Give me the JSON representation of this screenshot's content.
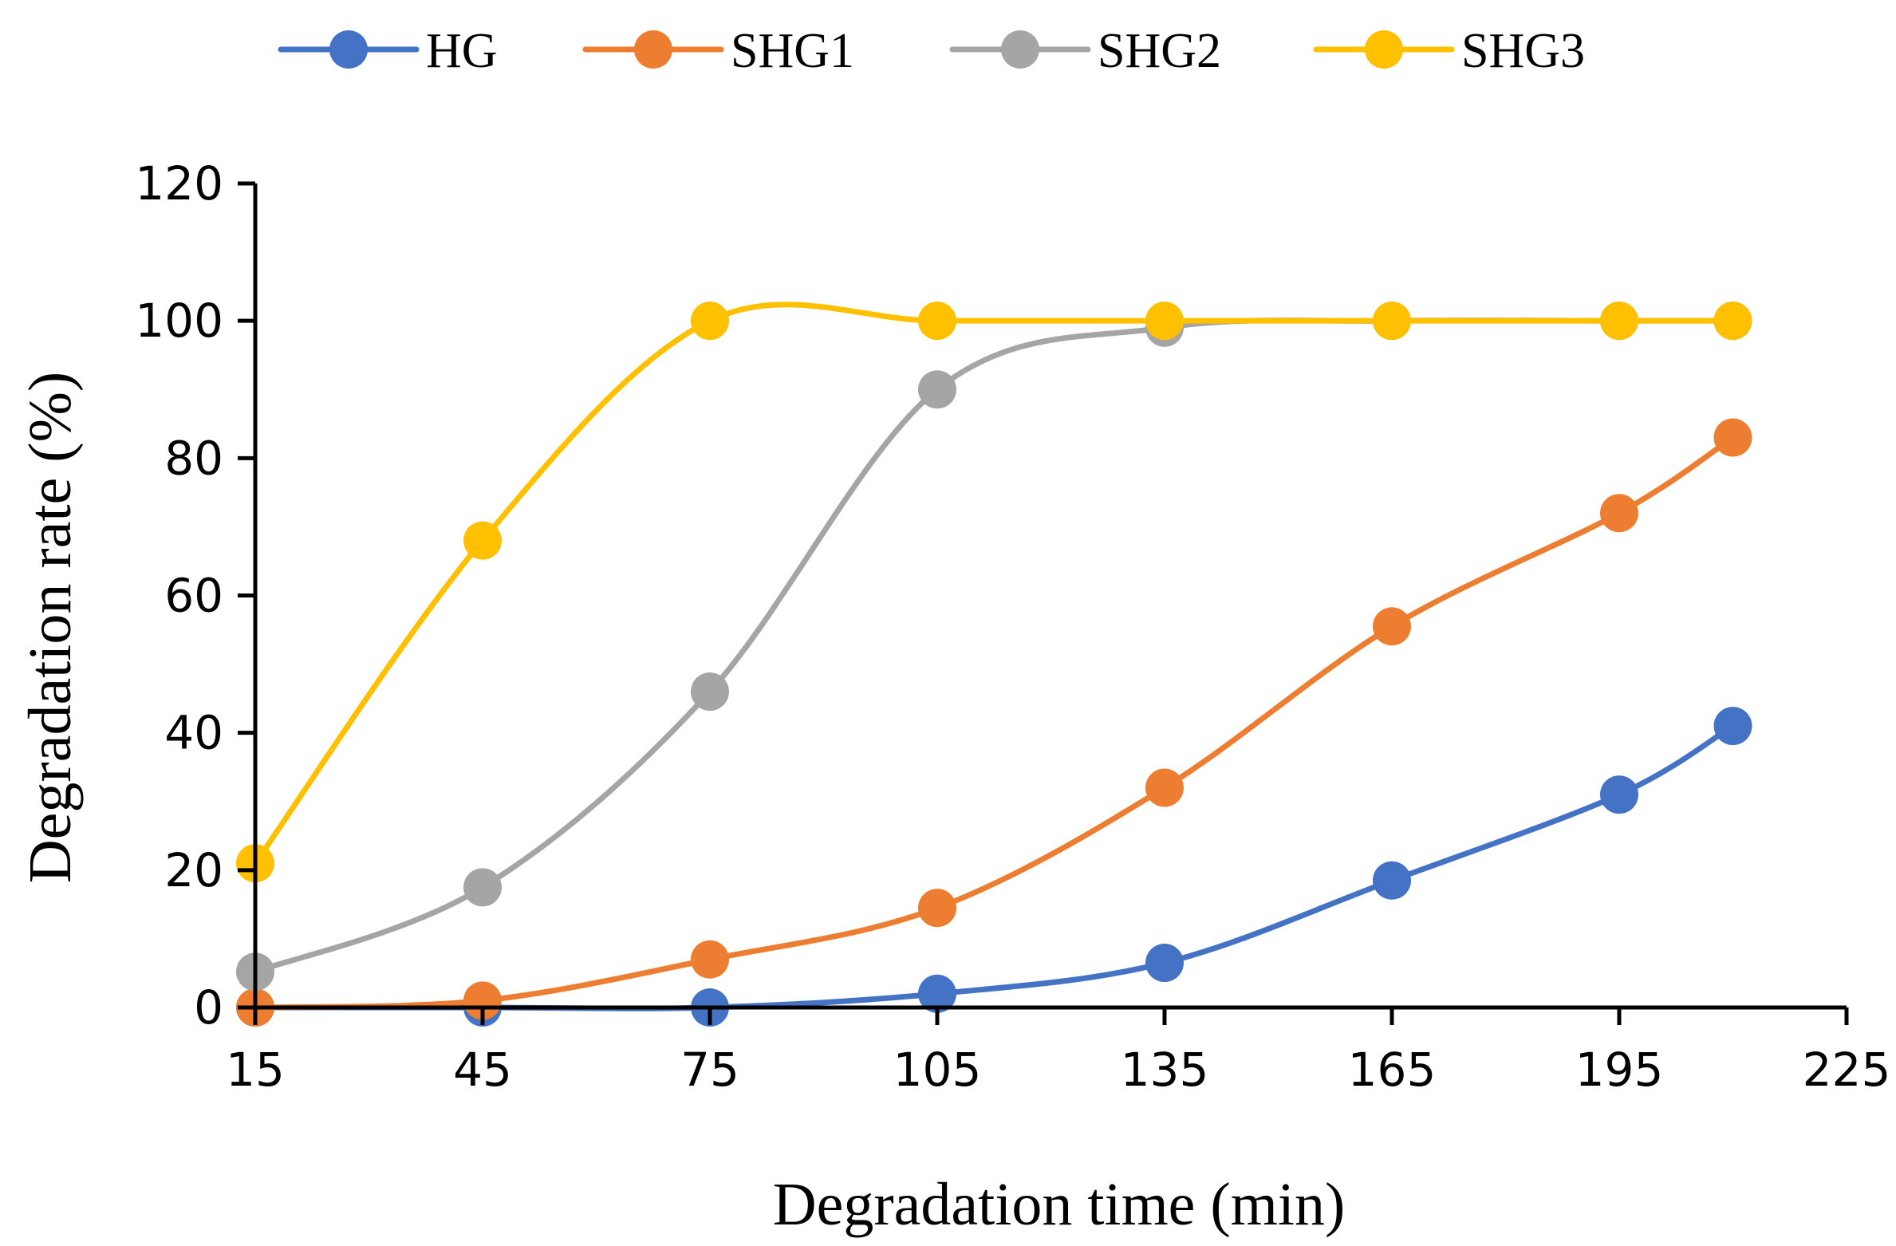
{
  "chart_data": {
    "type": "line",
    "title": "",
    "xlabel": "Degradation time (min)",
    "ylabel": "Degradation rate (%)",
    "xlim": [
      15,
      225
    ],
    "ylim": [
      0,
      120
    ],
    "xticks": [
      15,
      45,
      75,
      105,
      135,
      165,
      195,
      225
    ],
    "yticks": [
      0,
      20,
      40,
      60,
      80,
      100,
      120
    ],
    "x": [
      15,
      45,
      75,
      105,
      135,
      165,
      195,
      210
    ],
    "legend_position": "top",
    "grid": false,
    "series": [
      {
        "name": "HG",
        "color": "#4472C4",
        "values": [
          0,
          0,
          0,
          2,
          6.5,
          18.5,
          31,
          41
        ]
      },
      {
        "name": "SHG1",
        "color": "#ED7D31",
        "values": [
          0,
          1,
          7,
          14.5,
          32,
          55.5,
          72,
          83
        ]
      },
      {
        "name": "SHG2",
        "color": "#A5A5A5",
        "values": [
          5.2,
          17.5,
          46,
          90,
          99,
          100,
          100,
          100
        ]
      },
      {
        "name": "SHG3",
        "color": "#FFC000",
        "values": [
          21,
          68,
          100,
          100,
          100,
          100,
          100,
          100
        ]
      }
    ]
  }
}
